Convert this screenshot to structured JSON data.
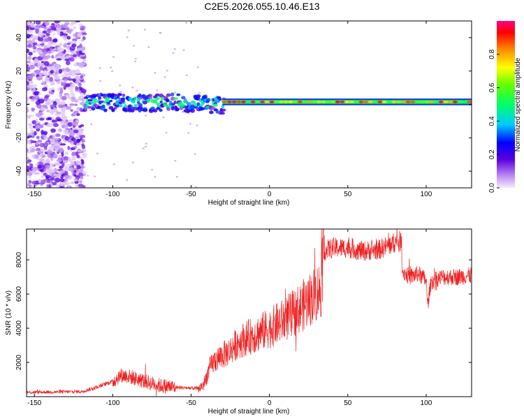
{
  "title": "C2E5.2026.055.10.46.E13",
  "chart_data": [
    {
      "type": "heatmap",
      "title": "C2E5.2026.055.10.46.E13",
      "xlabel": "Height of straight line (km)",
      "ylabel": "Frequency (Hz)",
      "xlim": [
        -155,
        129
      ],
      "ylim": [
        -50,
        50
      ],
      "xticks": [
        -150,
        -100,
        -50,
        0,
        50,
        100
      ],
      "yticks": [
        -40,
        -20,
        0,
        20,
        40
      ],
      "colorbar": {
        "label": "Normalized spectral amplitude",
        "range": [
          0,
          1
        ],
        "ticks": [
          0.0,
          0.2,
          0.4,
          0.6,
          0.8
        ],
        "tick_labels": [
          "0.0",
          "0.2",
          "0.4",
          "0.6",
          "0.8"
        ]
      },
      "regions": [
        {
          "name": "noise",
          "x": [
            -155,
            -118
          ],
          "freq_range": [
            -50,
            50
          ],
          "amplitude": [
            0.02,
            0.2
          ]
        },
        {
          "name": "scattered-band",
          "x": [
            -118,
            -30
          ],
          "freq_center": 1,
          "freq_halfwidth": 5,
          "amplitude": [
            0.1,
            0.55
          ]
        },
        {
          "name": "narrow-line",
          "x": [
            -30,
            129
          ],
          "freq_center": 1.5,
          "freq_halfwidth": 2,
          "amplitude": [
            0.5,
            1.0
          ]
        }
      ]
    },
    {
      "type": "line",
      "xlabel": "Height of straight line (km)",
      "ylabel": "SNR (10 * v/v)",
      "xlim": [
        -155,
        129
      ],
      "ylim": [
        0,
        9800
      ],
      "xticks": [
        -150,
        -100,
        -50,
        0,
        50,
        100
      ],
      "yticks": [
        2000,
        4000,
        6000,
        8000
      ],
      "color": "#ee2222",
      "series": [
        {
          "name": "SNR",
          "x": [
            -155,
            -120,
            -112,
            -100,
            -95,
            -90,
            -80,
            -70,
            -60,
            -50,
            -45,
            -42,
            -38,
            -35,
            -30,
            -25,
            -20,
            -10,
            0,
            10,
            20,
            28,
            33,
            34,
            40,
            50,
            60,
            70,
            80,
            84,
            85,
            90,
            95,
            100,
            101,
            103,
            110,
            120,
            129
          ],
          "values": [
            250,
            300,
            500,
            900,
            1250,
            1200,
            900,
            650,
            550,
            500,
            480,
            700,
            1700,
            2100,
            2400,
            2700,
            3200,
            3600,
            4000,
            4500,
            5200,
            5900,
            6300,
            8500,
            8700,
            8700,
            8500,
            8600,
            9000,
            9100,
            7300,
            7000,
            7200,
            6800,
            5300,
            6700,
            7000,
            7000,
            7100
          ]
        }
      ]
    }
  ]
}
